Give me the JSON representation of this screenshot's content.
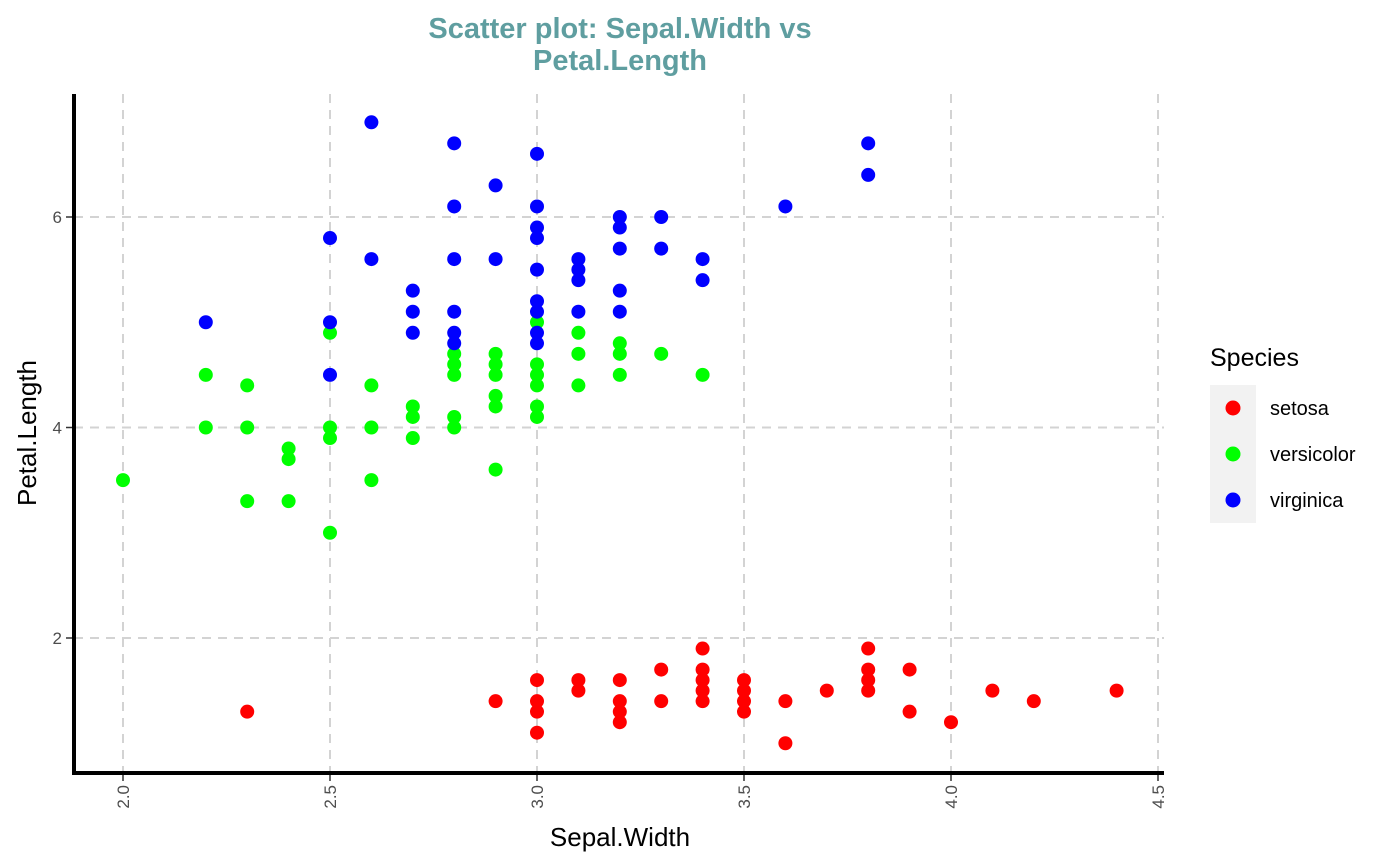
{
  "chart_data": {
    "type": "scatter",
    "title": "Scatter plot: Sepal.Width vs\nPetal.Length",
    "title_color": "#5f9ea0",
    "xlabel": "Sepal.Width",
    "ylabel": "Petal.Length",
    "xlim": [
      1.9,
      4.5
    ],
    "ylim": [
      0.8,
      7.1
    ],
    "x_ticks": [
      "2.0",
      "2.5",
      "3.0",
      "3.5",
      "4.0",
      "4.5"
    ],
    "y_ticks": [
      "2",
      "4",
      "6"
    ],
    "grid": true,
    "legend": {
      "title": "Species",
      "position": "right"
    },
    "series": [
      {
        "name": "setosa",
        "color": "#ff0000",
        "points": [
          [
            2.3,
            1.3
          ],
          [
            2.9,
            1.4
          ],
          [
            3.0,
            1.6
          ],
          [
            3.0,
            1.4
          ],
          [
            3.0,
            1.3
          ],
          [
            3.0,
            1.1
          ],
          [
            3.1,
            1.6
          ],
          [
            3.1,
            1.5
          ],
          [
            3.2,
            1.6
          ],
          [
            3.2,
            1.4
          ],
          [
            3.2,
            1.3
          ],
          [
            3.2,
            1.2
          ],
          [
            3.3,
            1.7
          ],
          [
            3.3,
            1.4
          ],
          [
            3.4,
            1.9
          ],
          [
            3.4,
            1.7
          ],
          [
            3.4,
            1.6
          ],
          [
            3.4,
            1.5
          ],
          [
            3.4,
            1.4
          ],
          [
            3.5,
            1.6
          ],
          [
            3.5,
            1.5
          ],
          [
            3.5,
            1.4
          ],
          [
            3.5,
            1.3
          ],
          [
            3.6,
            1.4
          ],
          [
            3.6,
            1.0
          ],
          [
            3.7,
            1.5
          ],
          [
            3.8,
            1.9
          ],
          [
            3.8,
            1.7
          ],
          [
            3.8,
            1.6
          ],
          [
            3.8,
            1.5
          ],
          [
            3.9,
            1.7
          ],
          [
            3.9,
            1.3
          ],
          [
            4.0,
            1.2
          ],
          [
            4.1,
            1.5
          ],
          [
            4.2,
            1.4
          ],
          [
            4.4,
            1.5
          ]
        ]
      },
      {
        "name": "versicolor",
        "color": "#00ff00",
        "points": [
          [
            2.0,
            3.5
          ],
          [
            2.2,
            4.5
          ],
          [
            2.2,
            4.0
          ],
          [
            2.3,
            4.4
          ],
          [
            2.3,
            4.0
          ],
          [
            2.3,
            3.3
          ],
          [
            2.4,
            3.8
          ],
          [
            2.4,
            3.7
          ],
          [
            2.4,
            3.3
          ],
          [
            2.5,
            4.9
          ],
          [
            2.5,
            4.0
          ],
          [
            2.5,
            3.9
          ],
          [
            2.5,
            3.0
          ],
          [
            2.6,
            4.4
          ],
          [
            2.6,
            4.0
          ],
          [
            2.6,
            3.5
          ],
          [
            2.7,
            4.2
          ],
          [
            2.7,
            4.1
          ],
          [
            2.7,
            3.9
          ],
          [
            2.8,
            4.7
          ],
          [
            2.8,
            4.6
          ],
          [
            2.8,
            4.5
          ],
          [
            2.8,
            4.1
          ],
          [
            2.8,
            4.0
          ],
          [
            2.9,
            4.7
          ],
          [
            2.9,
            4.6
          ],
          [
            2.9,
            4.5
          ],
          [
            2.9,
            4.3
          ],
          [
            2.9,
            4.2
          ],
          [
            2.9,
            3.6
          ],
          [
            3.0,
            5.0
          ],
          [
            3.0,
            4.6
          ],
          [
            3.0,
            4.5
          ],
          [
            3.0,
            4.4
          ],
          [
            3.0,
            4.2
          ],
          [
            3.0,
            4.1
          ],
          [
            3.1,
            4.9
          ],
          [
            3.1,
            4.7
          ],
          [
            3.1,
            4.4
          ],
          [
            3.2,
            4.8
          ],
          [
            3.2,
            4.7
          ],
          [
            3.2,
            4.5
          ],
          [
            3.3,
            4.7
          ],
          [
            3.4,
            4.5
          ]
        ]
      },
      {
        "name": "virginica",
        "color": "#0000ff",
        "points": [
          [
            2.2,
            5.0
          ],
          [
            2.5,
            5.8
          ],
          [
            2.5,
            5.0
          ],
          [
            2.5,
            4.5
          ],
          [
            2.6,
            6.9
          ],
          [
            2.6,
            5.6
          ],
          [
            2.7,
            5.3
          ],
          [
            2.7,
            5.1
          ],
          [
            2.7,
            4.9
          ],
          [
            2.8,
            6.7
          ],
          [
            2.8,
            6.1
          ],
          [
            2.8,
            5.6
          ],
          [
            2.8,
            5.1
          ],
          [
            2.8,
            4.9
          ],
          [
            2.8,
            4.8
          ],
          [
            2.9,
            6.3
          ],
          [
            2.9,
            5.6
          ],
          [
            3.0,
            6.6
          ],
          [
            3.0,
            6.1
          ],
          [
            3.0,
            5.9
          ],
          [
            3.0,
            5.8
          ],
          [
            3.0,
            5.5
          ],
          [
            3.0,
            5.2
          ],
          [
            3.0,
            5.1
          ],
          [
            3.0,
            4.9
          ],
          [
            3.0,
            4.8
          ],
          [
            3.1,
            5.6
          ],
          [
            3.1,
            5.5
          ],
          [
            3.1,
            5.4
          ],
          [
            3.1,
            5.1
          ],
          [
            3.2,
            6.0
          ],
          [
            3.2,
            5.9
          ],
          [
            3.2,
            5.7
          ],
          [
            3.2,
            5.3
          ],
          [
            3.2,
            5.1
          ],
          [
            3.3,
            6.0
          ],
          [
            3.3,
            5.7
          ],
          [
            3.4,
            5.6
          ],
          [
            3.4,
            5.4
          ],
          [
            3.6,
            6.1
          ],
          [
            3.8,
            6.7
          ],
          [
            3.8,
            6.4
          ]
        ]
      }
    ]
  }
}
